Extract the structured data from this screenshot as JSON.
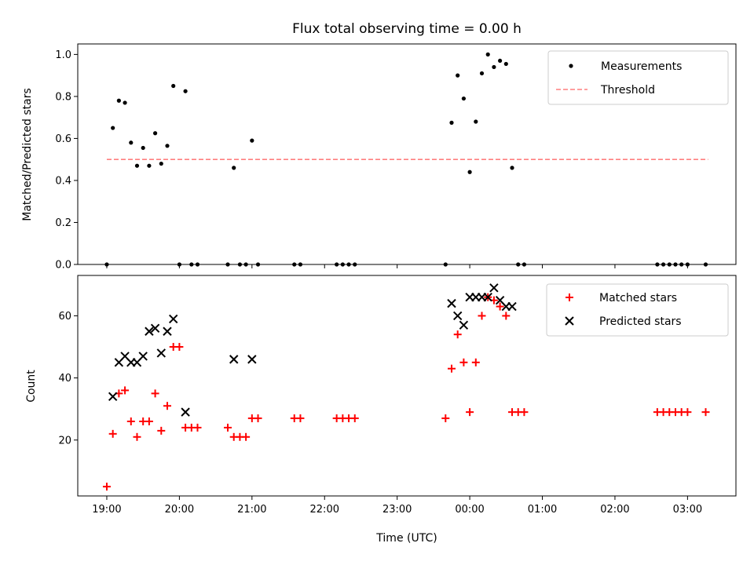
{
  "chart_data": [
    {
      "type": "scatter",
      "title": "Flux total observing time = 0.00 h",
      "xlabel": "",
      "ylabel": "Matched/Predicted stars",
      "ylim": [
        0,
        1.05
      ],
      "yticks": [
        "0.0",
        "0.2",
        "0.4",
        "0.6",
        "0.8",
        "1.0"
      ],
      "ytick_values": [
        0,
        0.2,
        0.4,
        0.6,
        0.8,
        1.0
      ],
      "legend": {
        "position": "top-right",
        "entries": [
          "Measurements",
          "Threshold"
        ]
      },
      "colors": {
        "measurements": "#000000",
        "threshold": "#ff7f7f"
      },
      "threshold": {
        "name": "Threshold",
        "value": 0.5,
        "x_range": [
          "19:00",
          "03:17"
        ]
      },
      "series": [
        {
          "name": "Measurements",
          "points": [
            [
              "19:00",
              0.0
            ],
            [
              "19:05",
              0.65
            ],
            [
              "19:10",
              0.78
            ],
            [
              "19:15",
              0.77
            ],
            [
              "19:20",
              0.58
            ],
            [
              "19:25",
              0.47
            ],
            [
              "19:30",
              0.555
            ],
            [
              "19:35",
              0.47
            ],
            [
              "19:40",
              0.625
            ],
            [
              "19:45",
              0.48
            ],
            [
              "19:50",
              0.565
            ],
            [
              "19:55",
              0.85
            ],
            [
              "20:00",
              0.0
            ],
            [
              "20:05",
              0.825
            ],
            [
              "20:10",
              0.0
            ],
            [
              "20:15",
              0.0
            ],
            [
              "20:40",
              0.0
            ],
            [
              "20:45",
              0.46
            ],
            [
              "20:50",
              0.0
            ],
            [
              "20:55",
              0.0
            ],
            [
              "21:00",
              0.59
            ],
            [
              "21:05",
              0.0
            ],
            [
              "21:35",
              0.0
            ],
            [
              "21:40",
              0.0
            ],
            [
              "22:10",
              0.0
            ],
            [
              "22:15",
              0.0
            ],
            [
              "22:20",
              0.0
            ],
            [
              "22:25",
              0.0
            ],
            [
              "23:40",
              0.0
            ],
            [
              "23:45",
              0.675
            ],
            [
              "23:50",
              0.9
            ],
            [
              "23:55",
              0.79
            ],
            [
              "00:00",
              0.44
            ],
            [
              "00:05",
              0.68
            ],
            [
              "00:10",
              0.91
            ],
            [
              "00:15",
              1.0
            ],
            [
              "00:20",
              0.94
            ],
            [
              "00:25",
              0.97
            ],
            [
              "00:30",
              0.955
            ],
            [
              "00:35",
              0.46
            ],
            [
              "00:40",
              0.0
            ],
            [
              "00:45",
              0.0
            ],
            [
              "02:35",
              0.0
            ],
            [
              "02:40",
              0.0
            ],
            [
              "02:45",
              0.0
            ],
            [
              "02:50",
              0.0
            ],
            [
              "02:55",
              0.0
            ],
            [
              "03:00",
              0.0
            ],
            [
              "03:15",
              0.0
            ]
          ]
        }
      ]
    },
    {
      "type": "scatter",
      "title": "",
      "xlabel": "Time (UTC)",
      "ylabel": "Count",
      "ylim": [
        2,
        73
      ],
      "yticks": [
        "20",
        "40",
        "60"
      ],
      "ytick_values": [
        20,
        40,
        60
      ],
      "xlim": [
        "18:36",
        "03:40"
      ],
      "xticks": [
        "19:00",
        "20:00",
        "21:00",
        "22:00",
        "23:00",
        "00:00",
        "01:00",
        "02:00",
        "03:00"
      ],
      "legend": {
        "position": "top-right",
        "entries": [
          "Matched stars",
          "Predicted stars"
        ]
      },
      "colors": {
        "matched": "#ff0000",
        "predicted": "#000000"
      },
      "series": [
        {
          "name": "Matched stars",
          "points": [
            [
              "19:00",
              5
            ],
            [
              "19:05",
              22
            ],
            [
              "19:10",
              35
            ],
            [
              "19:15",
              36
            ],
            [
              "19:20",
              26
            ],
            [
              "19:25",
              21
            ],
            [
              "19:30",
              26
            ],
            [
              "19:35",
              26
            ],
            [
              "19:40",
              35
            ],
            [
              "19:45",
              23
            ],
            [
              "19:50",
              31
            ],
            [
              "19:55",
              50
            ],
            [
              "20:00",
              50
            ],
            [
              "20:05",
              24
            ],
            [
              "20:10",
              24
            ],
            [
              "20:15",
              24
            ],
            [
              "20:40",
              24
            ],
            [
              "20:45",
              21
            ],
            [
              "20:50",
              21
            ],
            [
              "20:55",
              21
            ],
            [
              "21:00",
              27
            ],
            [
              "21:05",
              27
            ],
            [
              "21:35",
              27
            ],
            [
              "21:40",
              27
            ],
            [
              "22:10",
              27
            ],
            [
              "22:15",
              27
            ],
            [
              "22:20",
              27
            ],
            [
              "22:25",
              27
            ],
            [
              "23:40",
              27
            ],
            [
              "23:45",
              43
            ],
            [
              "23:50",
              54
            ],
            [
              "23:55",
              45
            ],
            [
              "00:00",
              29
            ],
            [
              "00:05",
              45
            ],
            [
              "00:10",
              60
            ],
            [
              "00:15",
              66
            ],
            [
              "00:20",
              65
            ],
            [
              "00:25",
              63
            ],
            [
              "00:30",
              60
            ],
            [
              "00:35",
              29
            ],
            [
              "00:40",
              29
            ],
            [
              "00:45",
              29
            ],
            [
              "02:35",
              29
            ],
            [
              "02:40",
              29
            ],
            [
              "02:45",
              29
            ],
            [
              "02:50",
              29
            ],
            [
              "02:55",
              29
            ],
            [
              "03:00",
              29
            ],
            [
              "03:15",
              29
            ]
          ]
        },
        {
          "name": "Predicted stars",
          "points": [
            [
              "19:05",
              34
            ],
            [
              "19:10",
              45
            ],
            [
              "19:15",
              47
            ],
            [
              "19:20",
              45
            ],
            [
              "19:25",
              45
            ],
            [
              "19:30",
              47
            ],
            [
              "19:35",
              55
            ],
            [
              "19:40",
              56
            ],
            [
              "19:45",
              48
            ],
            [
              "19:50",
              55
            ],
            [
              "19:55",
              59
            ],
            [
              "20:05",
              29
            ],
            [
              "20:45",
              46
            ],
            [
              "21:00",
              46
            ],
            [
              "23:45",
              64
            ],
            [
              "23:50",
              60
            ],
            [
              "23:55",
              57
            ],
            [
              "00:00",
              66
            ],
            [
              "00:05",
              66
            ],
            [
              "00:10",
              66
            ],
            [
              "00:15",
              66
            ],
            [
              "00:20",
              69
            ],
            [
              "00:25",
              65
            ],
            [
              "00:30",
              63
            ],
            [
              "00:35",
              63
            ]
          ]
        }
      ]
    }
  ]
}
